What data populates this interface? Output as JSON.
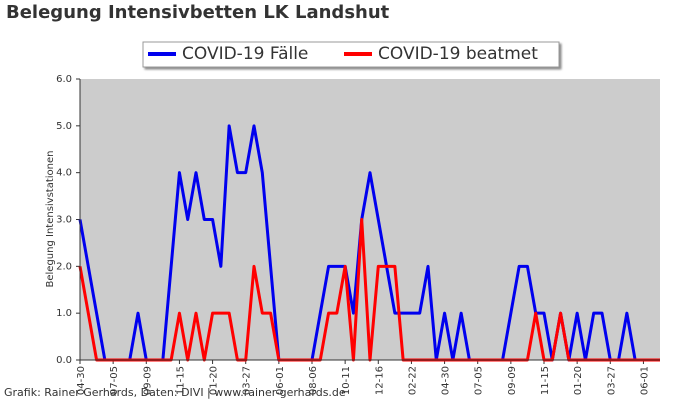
{
  "chart_data": {
    "type": "line",
    "title": "Belegung Intensivbetten LK Landshut",
    "y_label": "Belegung Intensivstationen",
    "footer": "Grafik: Rainer Gerhards, Daten: DIVI | www.rainer-gerhards.de",
    "categories": [
      "04-30",
      null,
      null,
      null,
      "07-05",
      null,
      null,
      null,
      "09-09",
      null,
      null,
      null,
      "11-15",
      null,
      null,
      null,
      "01-20",
      null,
      null,
      null,
      "03-27",
      null,
      null,
      null,
      "06-01",
      null,
      null,
      null,
      "08-06",
      null,
      null,
      null,
      "10-11",
      null,
      null,
      null,
      "12-16",
      null,
      null,
      null,
      "02-22",
      null,
      null,
      null,
      "04-30",
      null,
      null,
      null,
      "07-05",
      null,
      null,
      null,
      "09-09",
      null,
      null,
      null,
      "11-15",
      null,
      null,
      null,
      "01-20",
      null,
      null,
      null,
      "03-27",
      null,
      null,
      null,
      "06-01",
      null,
      null
    ],
    "series": [
      {
        "name": "COVID-19 Fälle",
        "color": "#0000ee",
        "values": [
          3,
          2,
          1,
          0,
          0,
          0,
          0,
          1,
          0,
          0,
          0,
          2,
          4,
          3,
          4,
          3,
          3,
          2,
          5,
          4,
          4,
          5,
          4,
          2,
          0,
          0,
          0,
          0,
          0,
          1,
          2,
          2,
          2,
          1,
          3,
          4,
          3,
          2,
          1,
          1,
          1,
          1,
          2,
          0,
          1,
          0,
          1,
          0,
          0,
          0,
          0,
          0,
          1,
          2,
          2,
          1,
          1,
          0,
          1,
          0,
          1,
          0,
          1,
          1,
          0,
          0,
          1,
          0,
          0,
          0,
          0
        ]
      },
      {
        "name": "COVID-19 beatmet",
        "color": "#ff0000",
        "values": [
          2,
          1,
          0,
          0,
          0,
          0,
          0,
          0,
          0,
          0,
          0,
          0,
          1,
          0,
          1,
          0,
          1,
          1,
          1,
          0,
          0,
          2,
          1,
          1,
          0,
          0,
          0,
          0,
          0,
          0,
          1,
          1,
          2,
          0,
          3,
          0,
          2,
          2,
          2,
          0,
          0,
          0,
          0,
          0,
          0,
          0,
          0,
          0,
          0,
          0,
          0,
          0,
          0,
          0,
          0,
          1,
          0,
          0,
          1,
          0,
          0,
          0,
          0,
          0,
          0,
          0,
          0,
          0,
          0,
          0,
          0
        ]
      }
    ],
    "ylim": [
      0,
      6
    ],
    "yticks": [
      {
        "value": 0,
        "label": "0.0"
      },
      {
        "value": 1,
        "label": "1.0"
      },
      {
        "value": 2,
        "label": "2.0"
      },
      {
        "value": 3,
        "label": "3.0"
      },
      {
        "value": 4,
        "label": "4.0"
      },
      {
        "value": 5,
        "label": "5.0"
      },
      {
        "value": 6,
        "label": "6.0"
      }
    ],
    "legend": "top"
  }
}
